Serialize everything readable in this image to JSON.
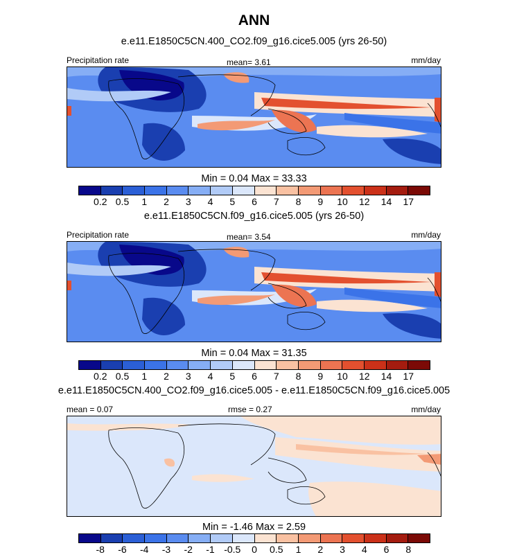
{
  "title": "ANN",
  "units": "mm/day",
  "palette": [
    "#08088a",
    "#1a3fb0",
    "#2b5fd6",
    "#3b73e8",
    "#5a8cf0",
    "#86aef5",
    "#b1cbf7",
    "#dbe7fb",
    "#fbe3d2",
    "#f9c1a2",
    "#f39a75",
    "#ec7452",
    "#e3502f",
    "#cb3119",
    "#a41c0f",
    "#7b0a06"
  ],
  "chart_data": [
    {
      "type": "heatmap",
      "title": "e.e11.E1850C5CN.400_CO2.f09_g16.cice5.005 (yrs 26-50)",
      "left_label": "Precipitation rate",
      "center_label": "mean=   3.61",
      "right_label": "mm/day",
      "min_max": "Min =   0.04 Max =   33.33",
      "levels": [
        "0.2",
        "0.5",
        "1",
        "2",
        "3",
        "4",
        "5",
        "6",
        "7",
        "8",
        "9",
        "10",
        "12",
        "14",
        "17"
      ]
    },
    {
      "type": "heatmap",
      "title": "e.e11.E1850C5CN.f09_g16.cice5.005 (yrs 26-50)",
      "left_label": "Precipitation rate",
      "center_label": "mean=   3.54",
      "right_label": "mm/day",
      "min_max": "Min =   0.04 Max =   31.35",
      "levels": [
        "0.2",
        "0.5",
        "1",
        "2",
        "3",
        "4",
        "5",
        "6",
        "7",
        "8",
        "9",
        "10",
        "12",
        "14",
        "17"
      ]
    },
    {
      "type": "heatmap",
      "title": "e.e11.E1850C5CN.400_CO2.f09_g16.cice5.005 - e.e11.E1850C5CN.f09_g16.cice5.005",
      "left_label": "mean =   0.07",
      "center_label": "rmse =   0.27",
      "right_label": "mm/day",
      "min_max": "Min =  -1.46 Max =   2.59",
      "levels": [
        "-8",
        "-6",
        "-4",
        "-3",
        "-2",
        "-1",
        "-0.5",
        "0",
        "0.5",
        "1",
        "2",
        "3",
        "4",
        "6",
        "8"
      ]
    }
  ]
}
